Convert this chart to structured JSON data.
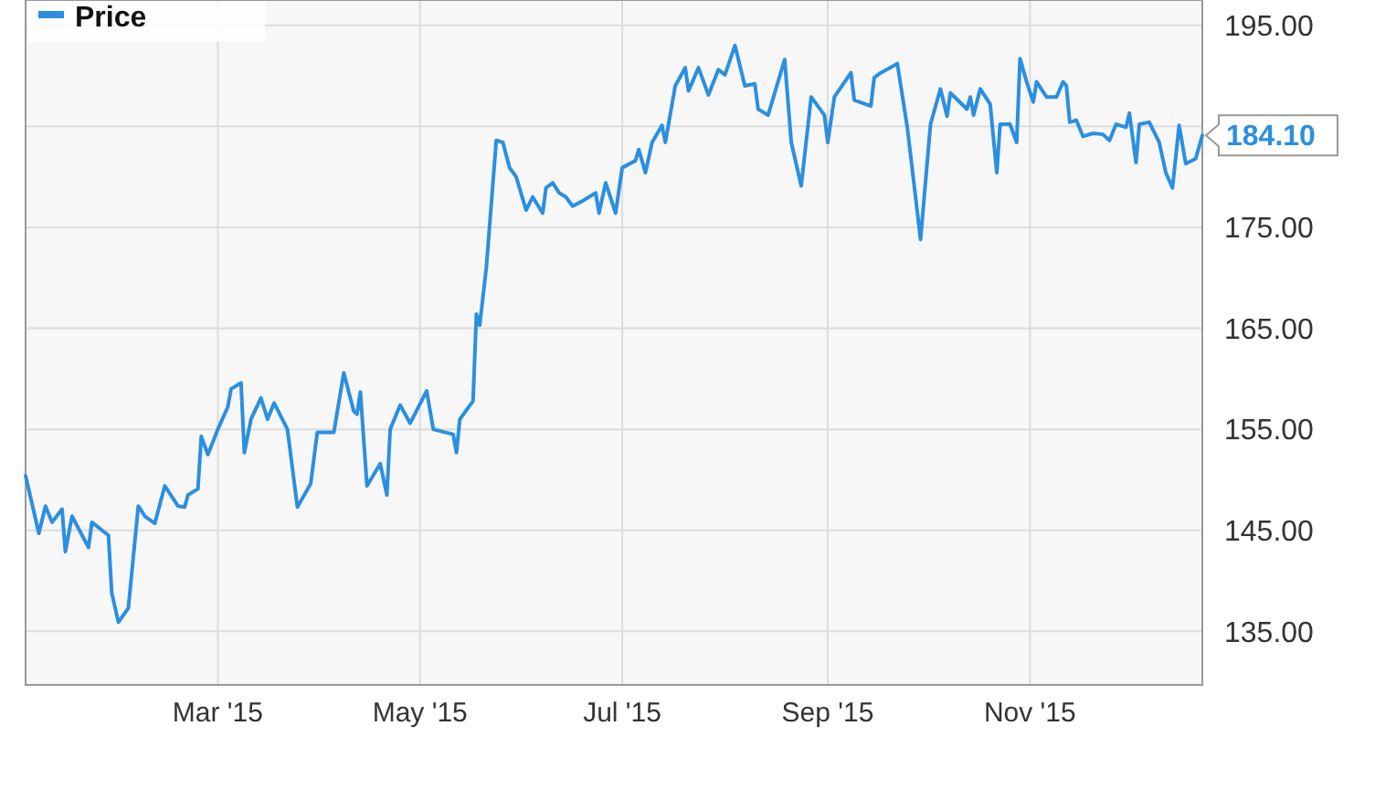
{
  "chart_data": {
    "type": "line",
    "legend": "top left",
    "grid": true,
    "xlim": [
      "2015-01-02",
      "2015-12-23"
    ],
    "ylim": [
      129.7,
      197.5
    ],
    "xticks": [
      {
        "value": "2015-03-01",
        "label": "Mar '15"
      },
      {
        "value": "2015-05-01",
        "label": "May '15"
      },
      {
        "value": "2015-07-01",
        "label": "Jul '15"
      },
      {
        "value": "2015-09-01",
        "label": "Sep '15"
      },
      {
        "value": "2015-11-01",
        "label": "Nov '15"
      }
    ],
    "yticks": [
      {
        "value": 135,
        "label": "135.00"
      },
      {
        "value": 145,
        "label": "145.00"
      },
      {
        "value": 155,
        "label": "155.00"
      },
      {
        "value": 165,
        "label": "165.00"
      },
      {
        "value": 175,
        "label": "175.00"
      },
      {
        "value": 185,
        "label": null
      },
      {
        "value": 195,
        "label": "195.00"
      }
    ],
    "annotations": [
      {
        "text": "184.10",
        "x": "2015-12-23",
        "y": 184.1
      }
    ],
    "x": [
      "2015-01-02",
      "2015-01-06",
      "2015-01-08",
      "2015-01-10",
      "2015-01-13",
      "2015-01-14",
      "2015-01-16",
      "2015-01-21",
      "2015-01-22",
      "2015-01-27",
      "2015-01-28",
      "2015-01-30",
      "2015-02-02",
      "2015-02-05",
      "2015-02-07",
      "2015-02-10",
      "2015-02-13",
      "2015-02-17",
      "2015-02-19",
      "2015-02-20",
      "2015-02-23",
      "2015-02-24",
      "2015-02-26",
      "2015-03-01",
      "2015-03-04",
      "2015-03-05",
      "2015-03-08",
      "2015-03-09",
      "2015-03-11",
      "2015-03-14",
      "2015-03-16",
      "2015-03-18",
      "2015-03-22",
      "2015-03-25",
      "2015-03-29",
      "2015-03-31",
      "2015-04-05",
      "2015-04-08",
      "2015-04-11",
      "2015-04-12",
      "2015-04-13",
      "2015-04-15",
      "2015-04-19",
      "2015-04-21",
      "2015-04-22",
      "2015-04-25",
      "2015-04-28",
      "2015-05-03",
      "2015-05-05",
      "2015-05-11",
      "2015-05-12",
      "2015-05-13",
      "2015-05-17",
      "2015-05-18",
      "2015-05-19",
      "2015-05-21",
      "2015-05-24",
      "2015-05-26",
      "2015-05-28",
      "2015-05-30",
      "2015-06-02",
      "2015-06-04",
      "2015-06-07",
      "2015-06-08",
      "2015-06-10",
      "2015-06-12",
      "2015-06-14",
      "2015-06-16",
      "2015-06-19",
      "2015-06-23",
      "2015-06-24",
      "2015-06-26",
      "2015-06-29",
      "2015-07-01",
      "2015-07-05",
      "2015-07-06",
      "2015-07-08",
      "2015-07-10",
      "2015-07-13",
      "2015-07-14",
      "2015-07-17",
      "2015-07-20",
      "2015-07-21",
      "2015-07-24",
      "2015-07-27",
      "2015-07-30",
      "2015-08-01",
      "2015-08-04",
      "2015-08-07",
      "2015-08-10",
      "2015-08-11",
      "2015-08-14",
      "2015-08-19",
      "2015-08-21",
      "2015-08-24",
      "2015-08-27",
      "2015-08-31",
      "2015-09-01",
      "2015-09-03",
      "2015-09-08",
      "2015-09-09",
      "2015-09-14",
      "2015-09-15",
      "2015-09-17",
      "2015-09-22",
      "2015-09-25",
      "2015-09-29",
      "2015-10-02",
      "2015-10-05",
      "2015-10-07",
      "2015-10-08",
      "2015-10-13",
      "2015-10-14",
      "2015-10-15",
      "2015-10-17",
      "2015-10-20",
      "2015-10-22",
      "2015-10-23",
      "2015-10-26",
      "2015-10-28",
      "2015-10-29",
      "2015-10-31",
      "2015-11-02",
      "2015-11-03",
      "2015-11-06",
      "2015-11-09",
      "2015-11-11",
      "2015-11-12",
      "2015-11-13",
      "2015-11-15",
      "2015-11-17",
      "2015-11-20",
      "2015-11-23",
      "2015-11-25",
      "2015-11-27",
      "2015-11-30",
      "2015-12-01",
      "2015-12-03",
      "2015-12-04",
      "2015-12-07",
      "2015-12-10",
      "2015-12-12",
      "2015-12-14",
      "2015-12-16",
      "2015-12-18",
      "2015-12-21",
      "2015-12-23"
    ],
    "series": [
      {
        "name": "Price",
        "color": "#2b8fe0",
        "values": [
          150.4,
          144.7,
          147.4,
          145.8,
          147.1,
          142.9,
          146.4,
          143.3,
          145.8,
          144.5,
          138.8,
          135.9,
          137.3,
          147.4,
          146.4,
          145.7,
          149.4,
          147.4,
          147.3,
          148.5,
          149.1,
          154.3,
          152.5,
          155.0,
          157.2,
          159.0,
          159.6,
          152.7,
          156.0,
          158.1,
          156.0,
          157.6,
          155.0,
          147.3,
          149.6,
          154.7,
          154.7,
          160.6,
          156.8,
          156.5,
          158.7,
          149.4,
          151.6,
          148.5,
          155.0,
          157.4,
          155.6,
          158.8,
          155.0,
          154.5,
          152.7,
          156.0,
          157.8,
          166.4,
          165.3,
          171.0,
          183.6,
          183.4,
          180.9,
          180.0,
          176.7,
          178.0,
          176.4,
          178.9,
          179.4,
          178.4,
          178.0,
          177.1,
          177.6,
          178.4,
          176.4,
          179.4,
          176.4,
          180.9,
          181.6,
          182.7,
          180.4,
          183.4,
          185.1,
          183.4,
          189.0,
          190.8,
          188.5,
          190.8,
          188.1,
          190.6,
          190.1,
          193.0,
          189.0,
          189.2,
          186.7,
          186.1,
          191.6,
          183.4,
          179.1,
          187.9,
          186.1,
          183.4,
          187.9,
          190.3,
          187.6,
          187.0,
          189.8,
          190.3,
          191.2,
          184.9,
          173.8,
          185.2,
          188.7,
          186.0,
          188.3,
          186.7,
          187.9,
          186.1,
          188.7,
          187.2,
          180.4,
          185.2,
          185.2,
          183.4,
          191.7,
          189.4,
          187.4,
          189.4,
          187.9,
          187.9,
          189.4,
          189.0,
          185.4,
          185.6,
          184.0,
          184.3,
          184.2,
          183.6,
          185.2,
          184.9,
          186.3,
          181.4,
          185.2,
          185.4,
          183.4,
          180.4,
          178.9,
          185.1,
          181.3,
          181.8,
          184.1
        ]
      }
    ]
  }
}
